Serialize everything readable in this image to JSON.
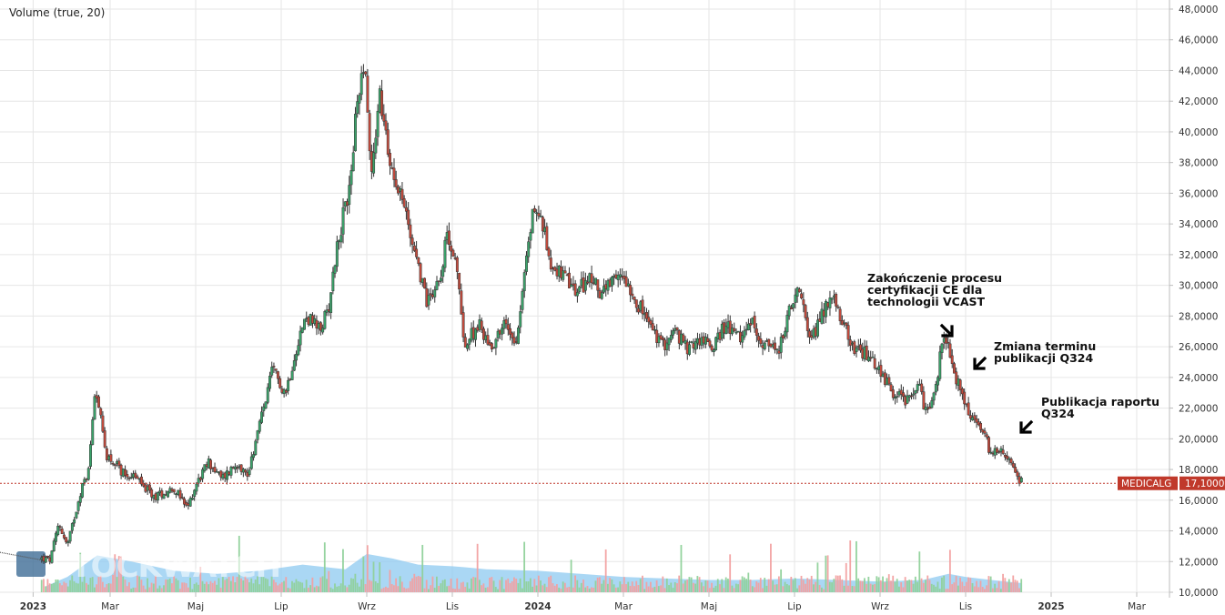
{
  "chart_data": {
    "type": "candlestick",
    "symbol": "MEDICALG",
    "last_price_label": "17,1000",
    "last_price": 17.1,
    "volume_indicator_label": "Volume (true, 20)",
    "watermark": "STOCKWATCH",
    "y_axis": {
      "position": "right",
      "range": [
        10,
        48
      ],
      "tick_labels": [
        "48,0000",
        "46,0000",
        "44,0000",
        "42,0000",
        "40,0000",
        "38,0000",
        "36,0000",
        "34,0000",
        "32,0000",
        "30,0000",
        "28,0000",
        "26,0000",
        "24,0000",
        "22,0000",
        "20,0000",
        "18,0000",
        "16,0000",
        "14,0000",
        "12,0000",
        "10,0000"
      ],
      "tick_values": [
        48,
        46,
        44,
        42,
        40,
        38,
        36,
        34,
        32,
        30,
        28,
        26,
        24,
        22,
        20,
        18,
        16,
        14,
        12,
        10
      ]
    },
    "x_axis": {
      "range_months": [
        0,
        26.5
      ],
      "ticks": [
        {
          "label": "2023",
          "month": 0.2,
          "bold": true
        },
        {
          "label": "Mar",
          "month": 2,
          "bold": false
        },
        {
          "label": "Maj",
          "month": 4,
          "bold": false
        },
        {
          "label": "Lip",
          "month": 6,
          "bold": false
        },
        {
          "label": "Wrz",
          "month": 8,
          "bold": false
        },
        {
          "label": "Lis",
          "month": 10,
          "bold": false
        },
        {
          "label": "2024",
          "month": 12,
          "bold": true
        },
        {
          "label": "Mar",
          "month": 14,
          "bold": false
        },
        {
          "label": "Maj",
          "month": 16,
          "bold": false
        },
        {
          "label": "Lip",
          "month": 18,
          "bold": false
        },
        {
          "label": "Wrz",
          "month": 20,
          "bold": false
        },
        {
          "label": "Lis",
          "month": 22,
          "bold": false
        },
        {
          "label": "2025",
          "month": 24,
          "bold": true
        },
        {
          "label": "Mar",
          "month": 26,
          "bold": false
        }
      ]
    },
    "price_path": [
      {
        "month": -0.5,
        "price": 12.6
      },
      {
        "month": 0.6,
        "price": 12.1
      },
      {
        "month": 0.8,
        "price": 14.5
      },
      {
        "month": 1.0,
        "price": 13.0
      },
      {
        "month": 1.3,
        "price": 16.5
      },
      {
        "month": 1.5,
        "price": 18.0
      },
      {
        "month": 1.65,
        "price": 23.6
      },
      {
        "month": 1.9,
        "price": 19.0
      },
      {
        "month": 2.3,
        "price": 17.8
      },
      {
        "month": 2.6,
        "price": 17.5
      },
      {
        "month": 3.0,
        "price": 16.2
      },
      {
        "month": 3.5,
        "price": 16.8
      },
      {
        "month": 3.8,
        "price": 15.4
      },
      {
        "month": 4.0,
        "price": 17.0
      },
      {
        "month": 4.3,
        "price": 18.5
      },
      {
        "month": 4.6,
        "price": 17.4
      },
      {
        "month": 5.0,
        "price": 18.5
      },
      {
        "month": 5.2,
        "price": 17.5
      },
      {
        "month": 5.5,
        "price": 21.0
      },
      {
        "month": 5.8,
        "price": 24.5
      },
      {
        "month": 6.1,
        "price": 23.0
      },
      {
        "month": 6.4,
        "price": 26.5
      },
      {
        "month": 6.6,
        "price": 28.0
      },
      {
        "month": 6.9,
        "price": 27.0
      },
      {
        "month": 7.1,
        "price": 28.5
      },
      {
        "month": 7.3,
        "price": 32.5
      },
      {
        "month": 7.6,
        "price": 36.5
      },
      {
        "month": 7.8,
        "price": 42.5
      },
      {
        "month": 7.95,
        "price": 45.0
      },
      {
        "month": 8.1,
        "price": 37.0
      },
      {
        "month": 8.3,
        "price": 42.5
      },
      {
        "month": 8.5,
        "price": 38.5
      },
      {
        "month": 8.8,
        "price": 36.0
      },
      {
        "month": 9.1,
        "price": 32.5
      },
      {
        "month": 9.4,
        "price": 29.0
      },
      {
        "month": 9.7,
        "price": 30.5
      },
      {
        "month": 9.9,
        "price": 33.5
      },
      {
        "month": 10.1,
        "price": 31.0
      },
      {
        "month": 10.3,
        "price": 26.0
      },
      {
        "month": 10.6,
        "price": 27.5
      },
      {
        "month": 10.9,
        "price": 26.0
      },
      {
        "month": 11.2,
        "price": 27.5
      },
      {
        "month": 11.5,
        "price": 26.5
      },
      {
        "month": 11.7,
        "price": 31.0
      },
      {
        "month": 11.9,
        "price": 35.2
      },
      {
        "month": 12.1,
        "price": 34.0
      },
      {
        "month": 12.3,
        "price": 31.5
      },
      {
        "month": 12.6,
        "price": 30.5
      },
      {
        "month": 12.9,
        "price": 29.5
      },
      {
        "month": 13.2,
        "price": 30.5
      },
      {
        "month": 13.5,
        "price": 29.5
      },
      {
        "month": 13.8,
        "price": 30.2
      },
      {
        "month": 14.0,
        "price": 30.8
      },
      {
        "month": 14.3,
        "price": 29.0
      },
      {
        "month": 14.6,
        "price": 27.5
      },
      {
        "month": 14.9,
        "price": 26.0
      },
      {
        "month": 15.2,
        "price": 27.0
      },
      {
        "month": 15.5,
        "price": 25.8
      },
      {
        "month": 15.8,
        "price": 26.5
      },
      {
        "month": 16.1,
        "price": 26.0
      },
      {
        "month": 16.4,
        "price": 27.5
      },
      {
        "month": 16.7,
        "price": 26.5
      },
      {
        "month": 17.0,
        "price": 27.5
      },
      {
        "month": 17.3,
        "price": 26.2
      },
      {
        "month": 17.6,
        "price": 25.5
      },
      {
        "month": 17.9,
        "price": 28.5
      },
      {
        "month": 18.1,
        "price": 29.5
      },
      {
        "month": 18.4,
        "price": 26.5
      },
      {
        "month": 18.7,
        "price": 28.5
      },
      {
        "month": 18.9,
        "price": 29.2
      },
      {
        "month": 19.1,
        "price": 27.5
      },
      {
        "month": 19.4,
        "price": 26.0
      },
      {
        "month": 19.7,
        "price": 25.5
      },
      {
        "month": 20.0,
        "price": 24.5
      },
      {
        "month": 20.3,
        "price": 23.0
      },
      {
        "month": 20.6,
        "price": 22.5
      },
      {
        "month": 20.9,
        "price": 23.5
      },
      {
        "month": 21.1,
        "price": 21.5
      },
      {
        "month": 21.3,
        "price": 23.5
      },
      {
        "month": 21.5,
        "price": 27.0
      },
      {
        "month": 21.7,
        "price": 24.5
      },
      {
        "month": 21.9,
        "price": 23.0
      },
      {
        "month": 22.1,
        "price": 21.5
      },
      {
        "month": 22.4,
        "price": 20.5
      },
      {
        "month": 22.6,
        "price": 19.0
      },
      {
        "month": 22.8,
        "price": 19.5
      },
      {
        "month": 23.0,
        "price": 18.5
      },
      {
        "month": 23.2,
        "price": 17.5
      },
      {
        "month": 23.35,
        "price": 17.1
      }
    ],
    "volume_path": [
      {
        "month": 0.5,
        "value": 10.4
      },
      {
        "month": 1.0,
        "value": 11.0
      },
      {
        "month": 1.7,
        "value": 12.4
      },
      {
        "month": 2.5,
        "value": 12.0
      },
      {
        "month": 3.5,
        "value": 11.4
      },
      {
        "month": 4.5,
        "value": 11.2
      },
      {
        "month": 5.5,
        "value": 11.4
      },
      {
        "month": 6.5,
        "value": 11.8
      },
      {
        "month": 7.5,
        "value": 11.5
      },
      {
        "month": 8.0,
        "value": 12.5
      },
      {
        "month": 8.6,
        "value": 12.2
      },
      {
        "month": 9.2,
        "value": 11.8
      },
      {
        "month": 10.0,
        "value": 11.7
      },
      {
        "month": 10.8,
        "value": 11.5
      },
      {
        "month": 12.0,
        "value": 11.4
      },
      {
        "month": 13.0,
        "value": 11.2
      },
      {
        "month": 14.0,
        "value": 11.0
      },
      {
        "month": 15.0,
        "value": 10.9
      },
      {
        "month": 16.0,
        "value": 10.8
      },
      {
        "month": 17.0,
        "value": 10.8
      },
      {
        "month": 18.0,
        "value": 10.9
      },
      {
        "month": 19.0,
        "value": 10.8
      },
      {
        "month": 20.0,
        "value": 10.7
      },
      {
        "month": 21.0,
        "value": 10.8
      },
      {
        "month": 21.6,
        "value": 11.2
      },
      {
        "month": 22.0,
        "value": 11.0
      },
      {
        "month": 22.6,
        "value": 10.8
      },
      {
        "month": 23.3,
        "value": 10.6
      }
    ],
    "annotations": [
      {
        "lines": [
          "Zakończenie procesu",
          "certyfikacji CE dla",
          "technologii VCAST"
        ],
        "month": 21.55,
        "price": 26.8,
        "arrow": "down-right"
      },
      {
        "lines": [
          "Zmiana terminu",
          "publikacji Q324"
        ],
        "month": 21.8,
        "price": 24.6,
        "arrow": "down-left"
      },
      {
        "lines": [
          "Publikacja raportu",
          "Q324"
        ],
        "month": 22.5,
        "price": 20.4,
        "arrow": "down-left"
      }
    ],
    "colors": {
      "up": "#3aa36a",
      "down": "#c44a3c",
      "wick": "#333333",
      "volume_area": "#8ec9f0",
      "last_price_line": "#c0392b",
      "price_tag": "#c0392b",
      "grid": "#e6e6e6"
    }
  }
}
